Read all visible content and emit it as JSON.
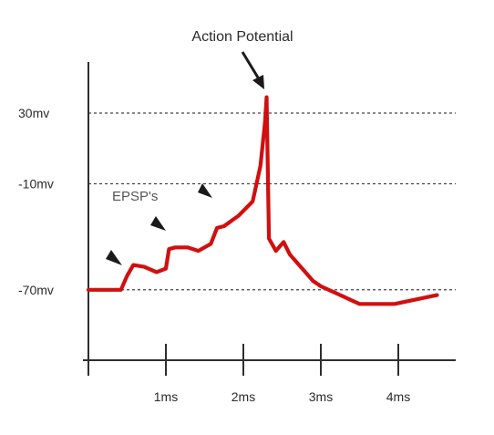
{
  "chart_data": {
    "type": "line",
    "title": "",
    "xlabel": "",
    "ylabel": "",
    "xlim": [
      0,
      4.8
    ],
    "ylim": [
      -90,
      52
    ],
    "x_ticks": [
      {
        "value": 1,
        "label": "1ms"
      },
      {
        "value": 2,
        "label": "2ms"
      },
      {
        "value": 3,
        "label": "3ms"
      },
      {
        "value": 4,
        "label": "4ms"
      }
    ],
    "y_gridlines": [
      {
        "value": 30,
        "label": "30mv"
      },
      {
        "value": -10,
        "label": "-10mv"
      },
      {
        "value": -70,
        "label": "-70mv"
      }
    ],
    "grid": "dashed horizontal at labeled levels",
    "series": [
      {
        "color": "#d10f0f",
        "x": [
          0.0,
          0.42,
          0.5,
          0.58,
          0.72,
          0.88,
          1.0,
          1.04,
          1.12,
          1.28,
          1.42,
          1.58,
          1.66,
          1.75,
          1.94,
          2.12,
          2.22,
          2.28,
          2.3,
          2.33,
          2.42,
          2.52,
          2.6,
          2.9,
          3.0,
          3.5,
          3.95,
          4.5
        ],
        "values": [
          -70,
          -70,
          -62,
          -56,
          -57,
          -60,
          -58,
          -47,
          -46,
          -46,
          -48,
          -44,
          -35,
          -34,
          -28,
          -20,
          0,
          25,
          39,
          -41,
          -48,
          -43,
          -50,
          -65,
          -68,
          -78,
          -78,
          -73
        ]
      }
    ],
    "annotations": [
      {
        "text": "Action Potential",
        "arrow_to": {
          "x": 2.28,
          "y": 40
        }
      },
      {
        "text": "EPSP's"
      },
      {
        "text": "",
        "arrowhead_at": {
          "x": 0.5,
          "y": -58
        }
      },
      {
        "text": "",
        "arrowhead_at": {
          "x": 1.0,
          "y": -41
        }
      },
      {
        "text": "",
        "arrowhead_at": {
          "x": 1.66,
          "y": -24
        }
      }
    ]
  }
}
